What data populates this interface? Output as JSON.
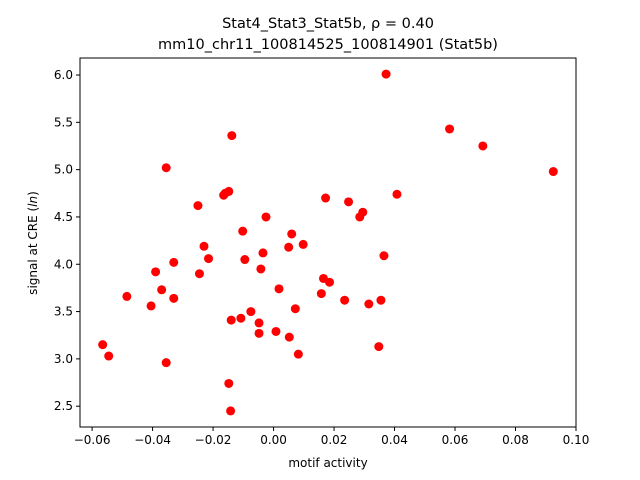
{
  "chart_data": {
    "type": "scatter",
    "title_line1": "Stat4_Stat3_Stat5b, ρ = 0.40",
    "title_line2": "mm10_chr11_100814525_100814901 (Stat5b)",
    "xlabel": "motif activity",
    "ylabel_prefix": "signal at CRE (",
    "ylabel_italic": "ln",
    "ylabel_suffix": ")",
    "xlim": [
      -0.064,
      0.1
    ],
    "ylim": [
      2.28,
      6.18
    ],
    "xticks": [
      -0.06,
      -0.04,
      -0.02,
      0.0,
      0.02,
      0.04,
      0.06,
      0.08,
      0.1
    ],
    "xtick_labels": [
      "−0.06",
      "−0.04",
      "−0.02",
      "0.00",
      "0.02",
      "0.04",
      "0.06",
      "0.08",
      "0.10"
    ],
    "yticks": [
      2.5,
      3.0,
      3.5,
      4.0,
      4.5,
      5.0,
      5.5,
      6.0
    ],
    "ytick_labels": [
      "2.5",
      "3.0",
      "3.5",
      "4.0",
      "4.5",
      "5.0",
      "5.5",
      "6.0"
    ],
    "marker_color": "#ff0000",
    "points": [
      {
        "x": -0.0565,
        "y": 3.15
      },
      {
        "x": -0.0545,
        "y": 3.03
      },
      {
        "x": -0.0485,
        "y": 3.66
      },
      {
        "x": -0.0405,
        "y": 3.56
      },
      {
        "x": -0.039,
        "y": 3.92
      },
      {
        "x": -0.037,
        "y": 3.73
      },
      {
        "x": -0.0355,
        "y": 5.02
      },
      {
        "x": -0.0355,
        "y": 2.96
      },
      {
        "x": -0.033,
        "y": 3.64
      },
      {
        "x": -0.033,
        "y": 4.02
      },
      {
        "x": -0.025,
        "y": 4.62
      },
      {
        "x": -0.0245,
        "y": 3.9
      },
      {
        "x": -0.023,
        "y": 4.19
      },
      {
        "x": -0.0215,
        "y": 4.06
      },
      {
        "x": -0.0165,
        "y": 4.73
      },
      {
        "x": -0.016,
        "y": 4.75
      },
      {
        "x": -0.0148,
        "y": 4.77
      },
      {
        "x": -0.0148,
        "y": 2.74
      },
      {
        "x": -0.0142,
        "y": 2.45
      },
      {
        "x": -0.014,
        "y": 3.41
      },
      {
        "x": -0.0138,
        "y": 5.36
      },
      {
        "x": -0.0108,
        "y": 3.43
      },
      {
        "x": -0.0102,
        "y": 4.35
      },
      {
        "x": -0.0095,
        "y": 4.05
      },
      {
        "x": -0.0075,
        "y": 3.5
      },
      {
        "x": -0.0048,
        "y": 3.38
      },
      {
        "x": -0.0048,
        "y": 3.27
      },
      {
        "x": -0.0042,
        "y": 3.95
      },
      {
        "x": -0.0035,
        "y": 4.12
      },
      {
        "x": -0.0025,
        "y": 4.5
      },
      {
        "x": 0.0008,
        "y": 3.29
      },
      {
        "x": 0.0018,
        "y": 3.74
      },
      {
        "x": 0.005,
        "y": 4.18
      },
      {
        "x": 0.0052,
        "y": 3.23
      },
      {
        "x": 0.006,
        "y": 4.32
      },
      {
        "x": 0.0072,
        "y": 3.53
      },
      {
        "x": 0.0082,
        "y": 3.05
      },
      {
        "x": 0.0098,
        "y": 4.21
      },
      {
        "x": 0.0158,
        "y": 3.69
      },
      {
        "x": 0.0165,
        "y": 3.85
      },
      {
        "x": 0.0172,
        "y": 4.7
      },
      {
        "x": 0.0185,
        "y": 3.81
      },
      {
        "x": 0.0235,
        "y": 3.62
      },
      {
        "x": 0.0248,
        "y": 4.66
      },
      {
        "x": 0.0285,
        "y": 4.5
      },
      {
        "x": 0.0295,
        "y": 4.55
      },
      {
        "x": 0.0315,
        "y": 3.58
      },
      {
        "x": 0.0348,
        "y": 3.13
      },
      {
        "x": 0.0355,
        "y": 3.62
      },
      {
        "x": 0.0365,
        "y": 4.09
      },
      {
        "x": 0.0372,
        "y": 6.01
      },
      {
        "x": 0.0408,
        "y": 4.74
      },
      {
        "x": 0.0582,
        "y": 5.43
      },
      {
        "x": 0.0692,
        "y": 5.25
      },
      {
        "x": 0.0925,
        "y": 4.98
      }
    ]
  }
}
